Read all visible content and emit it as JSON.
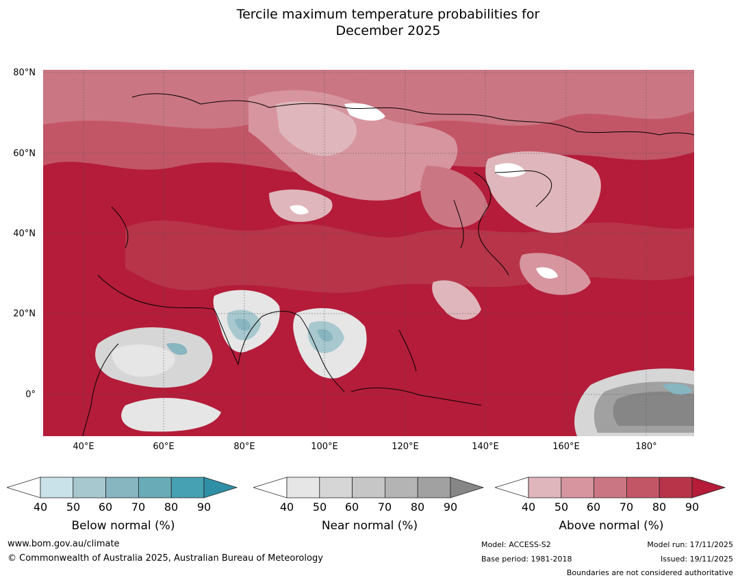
{
  "title": {
    "line1": "Tercile maximum temperature probabilities for",
    "line2": "December 2025"
  },
  "map": {
    "lat_labels": [
      "80°N",
      "60°N",
      "40°N",
      "20°N",
      "0°"
    ],
    "lon_labels": [
      "40°E",
      "60°E",
      "80°E",
      "100°E",
      "120°E",
      "140°E",
      "160°E",
      "180°"
    ],
    "lon_range": [
      "30°E",
      "192°E"
    ],
    "lat_range": [
      "10°S",
      "80°N"
    ]
  },
  "colorbars": [
    {
      "name": "below",
      "label": "Below normal (%)",
      "ticks": [
        "40",
        "50",
        "60",
        "70",
        "80",
        "90"
      ],
      "colors": [
        "#ffffff",
        "#c9e1e8",
        "#a8c8cf",
        "#87b5c0",
        "#6aabb8",
        "#46a1b2",
        "#2f8fa6"
      ]
    },
    {
      "name": "near",
      "label": "Near normal (%)",
      "ticks": [
        "40",
        "50",
        "60",
        "70",
        "80",
        "90"
      ],
      "colors": [
        "#ffffff",
        "#e6e6e6",
        "#d6d6d6",
        "#c6c6c6",
        "#b4b4b4",
        "#a1a1a1",
        "#868686"
      ]
    },
    {
      "name": "above",
      "label": "Above normal (%)",
      "ticks": [
        "40",
        "50",
        "60",
        "70",
        "80",
        "90"
      ],
      "colors": [
        "#ffffff",
        "#dfb6bc",
        "#d6959f",
        "#cb7683",
        "#c25667",
        "#b73449",
        "#b41c3a"
      ]
    }
  ],
  "footer": {
    "website": "www.bom.gov.au/climate",
    "copyright": "© Commonwealth of Australia 2025, Australian Bureau of Meteorology",
    "model": "Model: ACCESS-S2",
    "base_period": "Base period: 1981-2018",
    "model_run": "Model run: 17/11/2025",
    "issued": "Issued: 19/11/2025",
    "disclaimer": "Boundaries are not considered authoritative"
  }
}
